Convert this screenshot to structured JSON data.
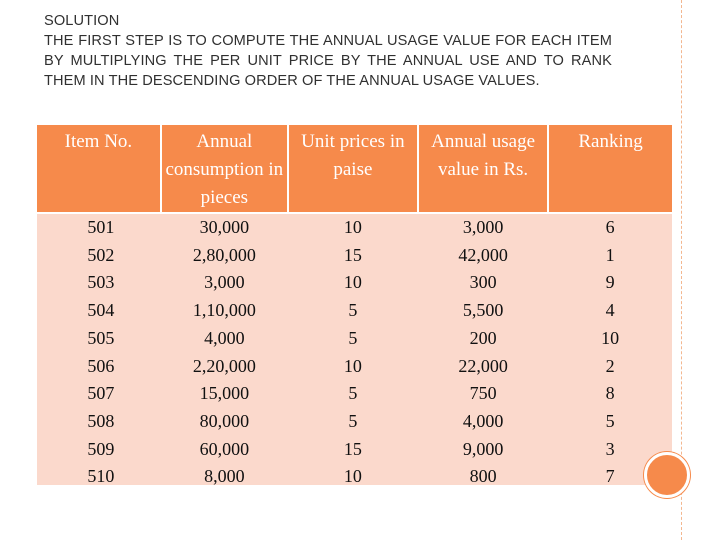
{
  "heading": {
    "title": "SOLUTION",
    "body": "THE FIRST STEP IS TO COMPUTE THE ANNUAL USAGE VALUE FOR EACH ITEM BY MULTIPLYING THE PER UNIT PRICE BY THE ANNUAL USE AND TO RANK THEM IN THE DESCENDING ORDER OF THE ANNUAL USAGE VALUES."
  },
  "table": {
    "columns": [
      "Item No.",
      "Annual consumption in pieces",
      "Unit prices in paise",
      "Annual usage value in Rs.",
      "Ranking"
    ],
    "rows": [
      [
        "501",
        "30,000",
        "10",
        "3,000",
        "6"
      ],
      [
        "502",
        "2,80,000",
        "15",
        "42,000",
        "1"
      ],
      [
        "503",
        "3,000",
        "10",
        "300",
        "9"
      ],
      [
        "504",
        "1,10,000",
        "5",
        "5,500",
        "4"
      ],
      [
        "505",
        "4,000",
        "5",
        "200",
        "10"
      ],
      [
        "506",
        "2,20,000",
        "10",
        "22,000",
        "2"
      ],
      [
        "507",
        "15,000",
        "5",
        "750",
        "8"
      ],
      [
        "508",
        "80,000",
        "5",
        "4,000",
        "5"
      ],
      [
        "509",
        "60,000",
        "15",
        "9,000",
        "3"
      ],
      [
        "510",
        "8,000",
        "10",
        "800",
        "7"
      ]
    ]
  },
  "colors": {
    "header_bg": "#f68a4b",
    "body_bg": "#fbd9cc",
    "accent_border": "#f3b790"
  }
}
